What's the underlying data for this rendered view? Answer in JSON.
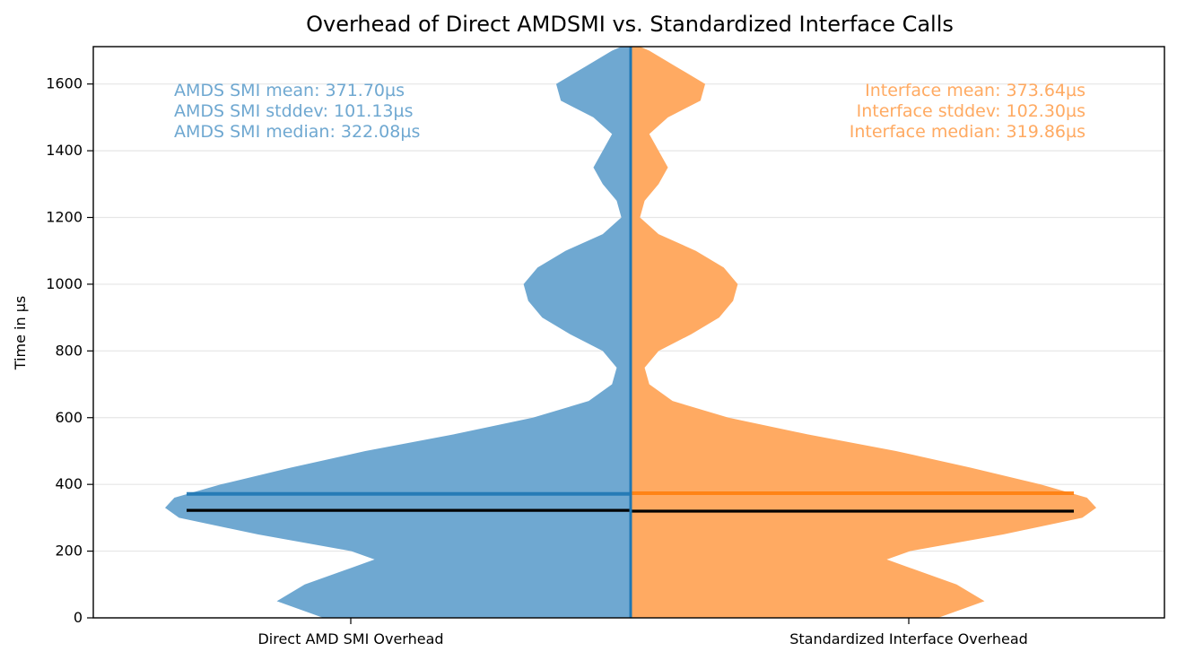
{
  "chart_data": {
    "type": "violin",
    "title": "Overhead of Direct AMDSMI vs. Standardized Interface Calls",
    "xlabel": "",
    "ylabel": "Time in µs",
    "ylim": [
      0,
      1712
    ],
    "yticks": [
      0,
      200,
      400,
      600,
      800,
      1000,
      1200,
      1400,
      1600
    ],
    "grid": true,
    "categories": [
      "Direct AMD SMI Overhead",
      "Standardized Interface Overhead"
    ],
    "series": [
      {
        "name": "Direct AMD SMI Overhead",
        "side": "left",
        "color": "#1f77b4",
        "fill_color": "#6fa8d1",
        "mean": 371.7,
        "median": 322.08,
        "stddev": 101.13,
        "density_y": [
          0,
          50,
          100,
          150,
          175,
          200,
          250,
          300,
          330,
          360,
          400,
          450,
          500,
          550,
          600,
          650,
          700,
          750,
          800,
          850,
          900,
          950,
          1000,
          1050,
          1100,
          1150,
          1200,
          1250,
          1300,
          1350,
          1400,
          1450,
          1500,
          1550,
          1600,
          1650,
          1700,
          1712
        ],
        "density_width": [
          0.66,
          0.76,
          0.7,
          0.6,
          0.55,
          0.6,
          0.8,
          0.97,
          1.0,
          0.98,
          0.88,
          0.73,
          0.57,
          0.38,
          0.21,
          0.09,
          0.04,
          0.03,
          0.06,
          0.13,
          0.19,
          0.22,
          0.23,
          0.2,
          0.14,
          0.06,
          0.02,
          0.03,
          0.06,
          0.08,
          0.06,
          0.04,
          0.08,
          0.15,
          0.16,
          0.1,
          0.04,
          0.02
        ]
      },
      {
        "name": "Standardized Interface Overhead",
        "side": "right",
        "color": "#ff7f0e",
        "fill_color": "#ffaa62",
        "mean": 373.64,
        "median": 319.86,
        "stddev": 102.3,
        "density_y": [
          0,
          50,
          100,
          150,
          175,
          200,
          250,
          300,
          330,
          360,
          400,
          450,
          500,
          550,
          600,
          650,
          700,
          750,
          800,
          850,
          900,
          950,
          1000,
          1050,
          1100,
          1150,
          1200,
          1250,
          1300,
          1350,
          1400,
          1450,
          1500,
          1550,
          1600,
          1650,
          1700,
          1712
        ],
        "density_width": [
          0.66,
          0.76,
          0.7,
          0.6,
          0.55,
          0.6,
          0.8,
          0.97,
          1.0,
          0.98,
          0.88,
          0.73,
          0.57,
          0.38,
          0.21,
          0.09,
          0.04,
          0.03,
          0.06,
          0.13,
          0.19,
          0.22,
          0.23,
          0.2,
          0.14,
          0.06,
          0.02,
          0.03,
          0.06,
          0.08,
          0.06,
          0.04,
          0.08,
          0.15,
          0.16,
          0.1,
          0.04,
          0.02
        ]
      }
    ],
    "annotations": {
      "left": [
        "AMDS SMI mean: 371.70µs",
        "AMDS SMI stddev: 101.13µs",
        "AMDS SMI median: 322.08µs"
      ],
      "right": [
        "Interface mean: 373.64µs",
        "Interface stddev: 102.30µs",
        "Interface median: 319.86µs"
      ]
    },
    "colors": {
      "grid": "#e6e6e6",
      "axis": "#000000",
      "median_line": "#000000",
      "left_annotation": "#6fa8d1",
      "right_annotation": "#ffaa62"
    }
  }
}
